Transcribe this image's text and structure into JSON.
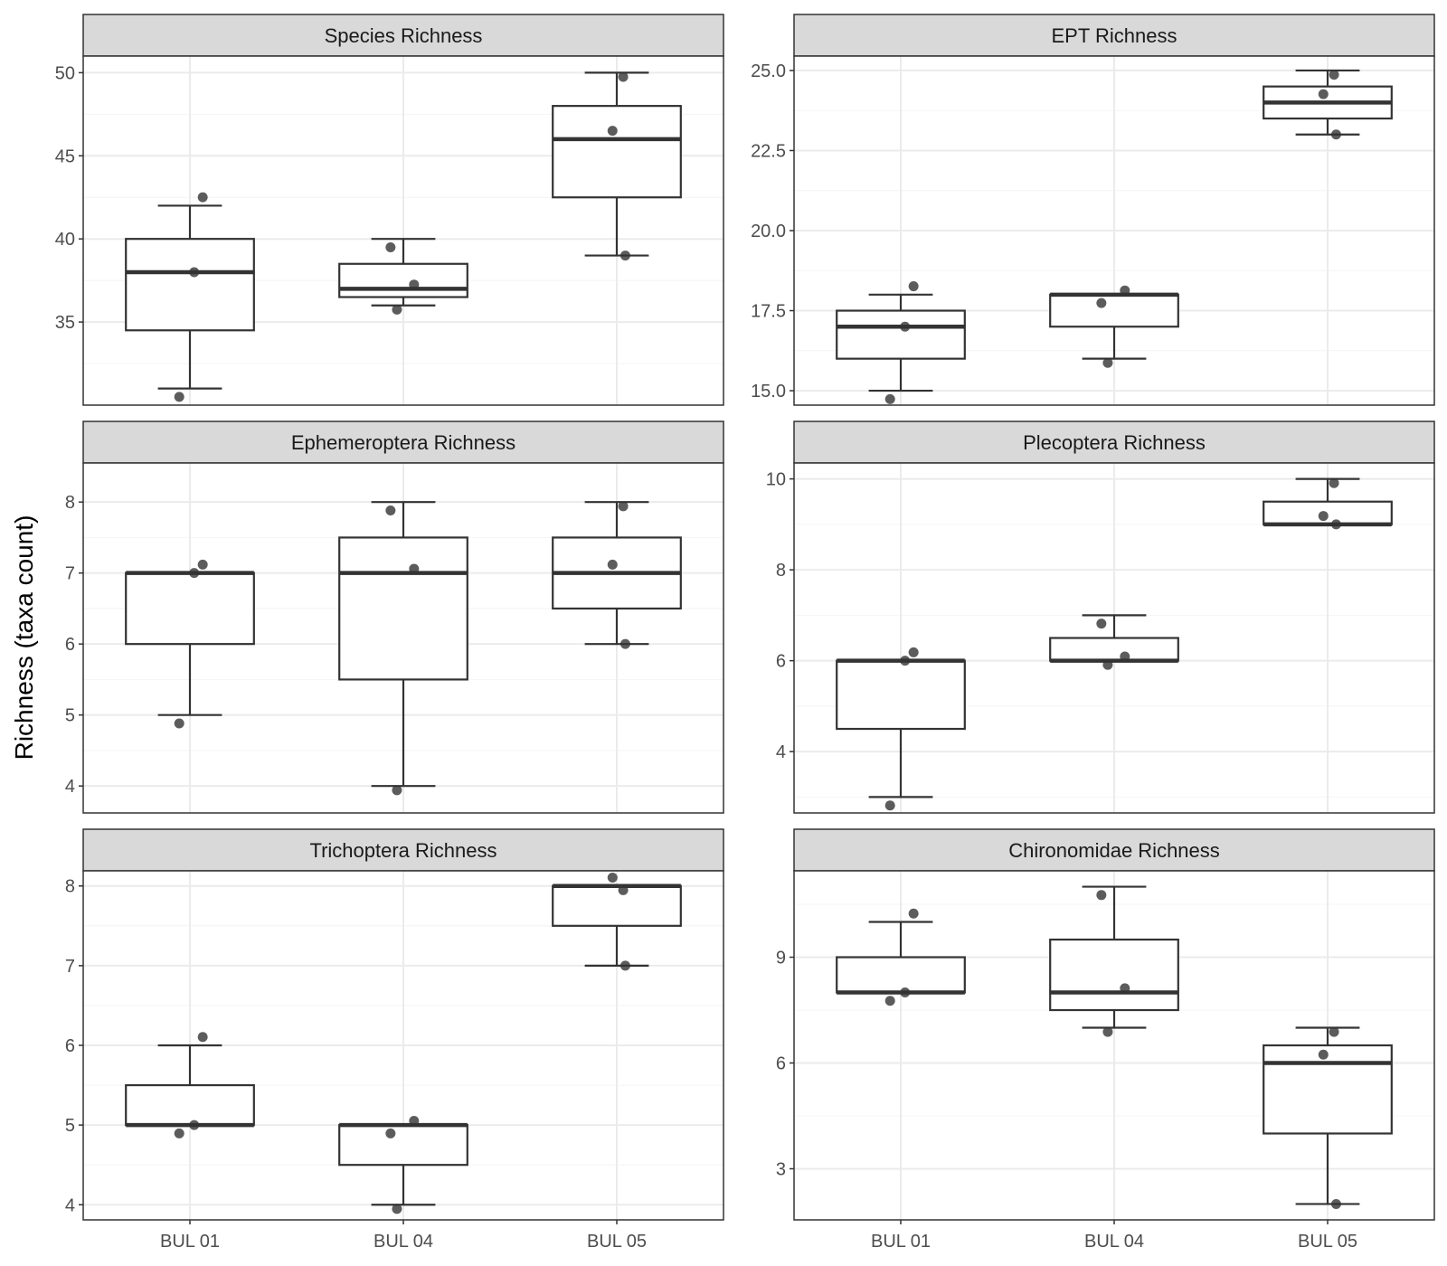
{
  "figure": {
    "ylabel": "Richness (taxa count)",
    "categories": [
      "BUL 01",
      "BUL 04",
      "BUL 05"
    ]
  },
  "colors": {
    "strip_fill": "#d9d9d9",
    "panel_border": "#333333",
    "grid_major": "#ebebeb",
    "grid_minor": "#f4f4f4",
    "box_line": "#333333",
    "point": "#333333"
  },
  "chart_data": [
    {
      "type": "box",
      "title": "Species Richness",
      "categories": [
        "BUL 01",
        "BUL 04",
        "BUL 05"
      ],
      "ylim": [
        30,
        51
      ],
      "yticks": [
        35,
        40,
        45,
        50
      ],
      "yticklabels": [
        "35",
        "40",
        "45",
        "50"
      ],
      "minor_yticks": [
        32.5,
        37.5,
        42.5,
        47.5
      ],
      "boxes": [
        {
          "category": "BUL 01",
          "min": 31,
          "q1": 34.5,
          "median": 38,
          "q3": 40,
          "max": 42
        },
        {
          "category": "BUL 04",
          "min": 36,
          "q1": 36.5,
          "median": 37,
          "q3": 38.5,
          "max": 40
        },
        {
          "category": "BUL 05",
          "min": 39,
          "q1": 42.5,
          "median": 46,
          "q3": 48,
          "max": 50
        }
      ],
      "points": [
        {
          "category": "BUL 01",
          "y": 31
        },
        {
          "category": "BUL 01",
          "y": 38
        },
        {
          "category": "BUL 01",
          "y": 42
        },
        {
          "category": "BUL 04",
          "y": 36
        },
        {
          "category": "BUL 04",
          "y": 37
        },
        {
          "category": "BUL 04",
          "y": 40
        },
        {
          "category": "BUL 05",
          "y": 39
        },
        {
          "category": "BUL 05",
          "y": 46
        },
        {
          "category": "BUL 05",
          "y": 50
        }
      ]
    },
    {
      "type": "box",
      "title": "EPT Richness",
      "categories": [
        "BUL 01",
        "BUL 04",
        "BUL 05"
      ],
      "ylim": [
        14.55,
        25.45
      ],
      "yticks": [
        15,
        17.5,
        20,
        22.5,
        25
      ],
      "yticklabels": [
        "15.0",
        "17.5",
        "20.0",
        "22.5",
        "25.0"
      ],
      "minor_yticks": [
        16.25,
        18.75,
        21.25,
        23.75
      ],
      "boxes": [
        {
          "category": "BUL 01",
          "min": 15,
          "q1": 16,
          "median": 17,
          "q3": 17.5,
          "max": 18
        },
        {
          "category": "BUL 04",
          "min": 16,
          "q1": 17,
          "median": 18,
          "q3": 18,
          "max": 18
        },
        {
          "category": "BUL 05",
          "min": 23,
          "q1": 23.5,
          "median": 24,
          "q3": 24.5,
          "max": 25
        }
      ],
      "points": [
        {
          "category": "BUL 01",
          "y": 15
        },
        {
          "category": "BUL 01",
          "y": 17
        },
        {
          "category": "BUL 01",
          "y": 18
        },
        {
          "category": "BUL 04",
          "y": 16
        },
        {
          "category": "BUL 04",
          "y": 18
        },
        {
          "category": "BUL 04",
          "y": 18
        },
        {
          "category": "BUL 05",
          "y": 23
        },
        {
          "category": "BUL 05",
          "y": 24
        },
        {
          "category": "BUL 05",
          "y": 25
        }
      ]
    },
    {
      "type": "box",
      "title": "Ephemeroptera Richness",
      "categories": [
        "BUL 01",
        "BUL 04",
        "BUL 05"
      ],
      "ylim": [
        3.62,
        8.55
      ],
      "yticks": [
        4,
        5,
        6,
        7,
        8
      ],
      "yticklabels": [
        "4",
        "5",
        "6",
        "7",
        "8"
      ],
      "minor_yticks": [
        4.5,
        5.5,
        6.5,
        7.5
      ],
      "boxes": [
        {
          "category": "BUL 01",
          "min": 5,
          "q1": 6,
          "median": 7,
          "q3": 7,
          "max": 7
        },
        {
          "category": "BUL 04",
          "min": 4,
          "q1": 5.5,
          "median": 7,
          "q3": 7.5,
          "max": 8
        },
        {
          "category": "BUL 05",
          "min": 6,
          "q1": 6.5,
          "median": 7,
          "q3": 7.5,
          "max": 8
        }
      ],
      "points": [
        {
          "category": "BUL 01",
          "y": 5
        },
        {
          "category": "BUL 01",
          "y": 7
        },
        {
          "category": "BUL 01",
          "y": 7
        },
        {
          "category": "BUL 04",
          "y": 4
        },
        {
          "category": "BUL 04",
          "y": 7
        },
        {
          "category": "BUL 04",
          "y": 8
        },
        {
          "category": "BUL 05",
          "y": 6
        },
        {
          "category": "BUL 05",
          "y": 7
        },
        {
          "category": "BUL 05",
          "y": 8
        }
      ]
    },
    {
      "type": "box",
      "title": "Plecoptera Richness",
      "categories": [
        "BUL 01",
        "BUL 04",
        "BUL 05"
      ],
      "ylim": [
        2.65,
        10.35
      ],
      "yticks": [
        4,
        6,
        8,
        10
      ],
      "yticklabels": [
        "4",
        "6",
        "8",
        "10"
      ],
      "minor_yticks": [
        3,
        5,
        7,
        9
      ],
      "boxes": [
        {
          "category": "BUL 01",
          "min": 3,
          "q1": 4.5,
          "median": 6,
          "q3": 6,
          "max": 6
        },
        {
          "category": "BUL 04",
          "min": 6,
          "q1": 6,
          "median": 6,
          "q3": 6.5,
          "max": 7
        },
        {
          "category": "BUL 05",
          "min": 9,
          "q1": 9,
          "median": 9,
          "q3": 9.5,
          "max": 10
        }
      ],
      "points": [
        {
          "category": "BUL 01",
          "y": 3
        },
        {
          "category": "BUL 01",
          "y": 6
        },
        {
          "category": "BUL 01",
          "y": 6
        },
        {
          "category": "BUL 04",
          "y": 6
        },
        {
          "category": "BUL 04",
          "y": 6
        },
        {
          "category": "BUL 04",
          "y": 7
        },
        {
          "category": "BUL 05",
          "y": 9
        },
        {
          "category": "BUL 05",
          "y": 9
        },
        {
          "category": "BUL 05",
          "y": 10
        }
      ]
    },
    {
      "type": "box",
      "title": "Trichoptera Richness",
      "categories": [
        "BUL 01",
        "BUL 04",
        "BUL 05"
      ],
      "ylim": [
        3.81,
        8.19
      ],
      "yticks": [
        4,
        5,
        6,
        7,
        8
      ],
      "yticklabels": [
        "4",
        "5",
        "6",
        "7",
        "8"
      ],
      "minor_yticks": [
        4.5,
        5.5,
        6.5,
        7.5
      ],
      "boxes": [
        {
          "category": "BUL 01",
          "min": 5,
          "q1": 5,
          "median": 5,
          "q3": 5.5,
          "max": 6
        },
        {
          "category": "BUL 04",
          "min": 4,
          "q1": 4.5,
          "median": 5,
          "q3": 5,
          "max": 5
        },
        {
          "category": "BUL 05",
          "min": 7,
          "q1": 7.5,
          "median": 8,
          "q3": 8,
          "max": 8
        }
      ],
      "points": [
        {
          "category": "BUL 01",
          "y": 5
        },
        {
          "category": "BUL 01",
          "y": 5
        },
        {
          "category": "BUL 01",
          "y": 6
        },
        {
          "category": "BUL 04",
          "y": 4
        },
        {
          "category": "BUL 04",
          "y": 5
        },
        {
          "category": "BUL 04",
          "y": 5
        },
        {
          "category": "BUL 05",
          "y": 7
        },
        {
          "category": "BUL 05",
          "y": 8
        },
        {
          "category": "BUL 05",
          "y": 8
        }
      ]
    },
    {
      "type": "box",
      "title": "Chironomidae Richness",
      "categories": [
        "BUL 01",
        "BUL 04",
        "BUL 05"
      ],
      "ylim": [
        1.55,
        11.45
      ],
      "yticks": [
        3,
        6,
        9
      ],
      "yticklabels": [
        "3",
        "6",
        "9"
      ],
      "minor_yticks": [
        1.5,
        4.5,
        7.5,
        10.5
      ],
      "boxes": [
        {
          "category": "BUL 01",
          "min": 8,
          "q1": 8,
          "median": 8,
          "q3": 9,
          "max": 10
        },
        {
          "category": "BUL 04",
          "min": 7,
          "q1": 7.5,
          "median": 8,
          "q3": 9.5,
          "max": 11
        },
        {
          "category": "BUL 05",
          "min": 2,
          "q1": 4,
          "median": 6,
          "q3": 6.5,
          "max": 7
        }
      ],
      "points": [
        {
          "category": "BUL 01",
          "y": 8
        },
        {
          "category": "BUL 01",
          "y": 8
        },
        {
          "category": "BUL 01",
          "y": 10
        },
        {
          "category": "BUL 04",
          "y": 7
        },
        {
          "category": "BUL 04",
          "y": 8
        },
        {
          "category": "BUL 04",
          "y": 11
        },
        {
          "category": "BUL 05",
          "y": 2
        },
        {
          "category": "BUL 05",
          "y": 6
        },
        {
          "category": "BUL 05",
          "y": 7
        }
      ]
    }
  ]
}
